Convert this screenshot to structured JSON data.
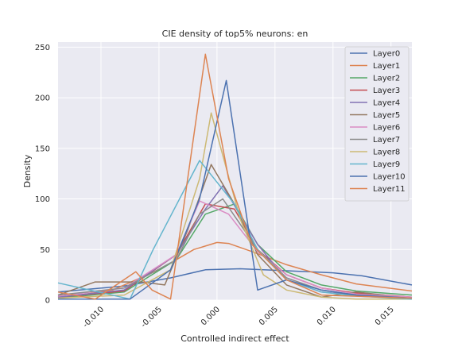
{
  "chart_data": {
    "type": "line",
    "title": "CIE density of top5% neurons: en",
    "xlabel": "Controlled indirect effect",
    "ylabel": "Density",
    "xlim": [
      -0.0137,
      0.0168
    ],
    "ylim": [
      0,
      255
    ],
    "xticks": [
      -0.01,
      -0.005,
      0.0,
      0.005,
      0.01,
      0.015
    ],
    "xtick_labels": [
      "-0.010",
      "-0.005",
      "0.000",
      "0.005",
      "0.010",
      "0.015"
    ],
    "yticks": [
      0,
      50,
      100,
      150,
      200,
      250
    ],
    "ytick_labels": [
      "0",
      "50",
      "100",
      "150",
      "200",
      "250"
    ],
    "grid": true,
    "background": "#eaeaf2",
    "legend_position": "top-right",
    "series": [
      {
        "name": "Layer0",
        "color": "#4c72b0",
        "x": [
          -0.0137,
          -0.008,
          -0.004,
          -0.001,
          0.002,
          0.006,
          0.01,
          0.0125,
          0.0168
        ],
        "y": [
          8,
          14,
          22,
          30,
          31,
          29,
          27,
          24,
          15
        ]
      },
      {
        "name": "Layer1",
        "color": "#dd8452",
        "x": [
          -0.0137,
          -0.009,
          -0.005,
          -0.002,
          0.0,
          0.001,
          0.003,
          0.006,
          0.009,
          0.012,
          0.0168
        ],
        "y": [
          2,
          10,
          30,
          50,
          57,
          56,
          48,
          35,
          25,
          16,
          9
        ]
      },
      {
        "name": "Layer2",
        "color": "#55a868",
        "x": [
          -0.0137,
          -0.008,
          -0.0035,
          -0.001,
          0.0015,
          0.0035,
          0.006,
          0.009,
          0.012,
          0.0168
        ],
        "y": [
          2,
          8,
          40,
          85,
          95,
          55,
          28,
          15,
          9,
          5
        ]
      },
      {
        "name": "Layer3",
        "color": "#c44e52",
        "x": [
          -0.0137,
          -0.008,
          -0.0035,
          -0.001,
          0.0015,
          0.0035,
          0.006,
          0.009,
          0.012,
          0.0168
        ],
        "y": [
          3,
          9,
          45,
          95,
          90,
          50,
          25,
          12,
          7,
          3
        ]
      },
      {
        "name": "Layer4",
        "color": "#8172b3",
        "x": [
          -0.0137,
          -0.008,
          -0.0035,
          -0.001,
          0.0005,
          0.0035,
          0.006,
          0.009,
          0.012,
          0.0168
        ],
        "y": [
          3,
          10,
          45,
          90,
          113,
          55,
          20,
          8,
          5,
          2
        ]
      },
      {
        "name": "Layer5",
        "color": "#937860",
        "x": [
          -0.0137,
          -0.0105,
          -0.0065,
          -0.0045,
          -0.0025,
          -0.0005,
          0.0015,
          0.0035,
          0.006,
          0.009,
          0.012,
          0.0168
        ],
        "y": [
          5,
          18,
          18,
          15,
          70,
          134,
          95,
          45,
          15,
          3,
          8,
          2
        ]
      },
      {
        "name": "Layer6",
        "color": "#da8bc3",
        "x": [
          -0.0137,
          -0.008,
          -0.0035,
          -0.0015,
          0.001,
          0.0035,
          0.006,
          0.009,
          0.012,
          0.0168
        ],
        "y": [
          4,
          12,
          45,
          98,
          85,
          48,
          25,
          12,
          6,
          3
        ]
      },
      {
        "name": "Layer7",
        "color": "#8c8c8c",
        "x": [
          -0.0137,
          -0.008,
          -0.0035,
          -0.0015,
          0.0005,
          0.0035,
          0.006,
          0.009,
          0.012,
          0.0168
        ],
        "y": [
          5,
          12,
          40,
          85,
          100,
          50,
          22,
          10,
          5,
          2
        ]
      },
      {
        "name": "Layer8",
        "color": "#ccb974",
        "x": [
          -0.0137,
          -0.008,
          -0.004,
          -0.0015,
          -0.0005,
          0.002,
          0.004,
          0.006,
          0.009,
          0.012,
          0.0168
        ],
        "y": [
          2,
          5,
          30,
          120,
          185,
          80,
          25,
          10,
          3,
          1,
          1
        ]
      },
      {
        "name": "Layer9",
        "color": "#64b5cd",
        "x": [
          -0.0137,
          -0.0075,
          -0.0055,
          -0.0015,
          0.0015,
          0.0035,
          0.006,
          0.009,
          0.012,
          0.0168
        ],
        "y": [
          17,
          1,
          50,
          138,
          95,
          50,
          20,
          8,
          4,
          1
        ]
      },
      {
        "name": "Layer10",
        "color": "#4c72b0",
        "x": [
          -0.0137,
          -0.0075,
          -0.004,
          -0.0015,
          0.0008,
          0.0035,
          0.006,
          0.009,
          0.012,
          0.0168
        ],
        "y": [
          1,
          1,
          30,
          100,
          217,
          10,
          20,
          10,
          5,
          2
        ]
      },
      {
        "name": "Layer11",
        "color": "#dd8452",
        "x": [
          -0.0137,
          -0.0105,
          -0.007,
          -0.0056,
          -0.004,
          -0.001,
          0.001,
          0.003,
          0.006,
          0.009,
          0.0168
        ],
        "y": [
          8,
          1,
          28,
          10,
          1,
          243,
          120,
          55,
          20,
          5,
          2
        ]
      }
    ]
  }
}
